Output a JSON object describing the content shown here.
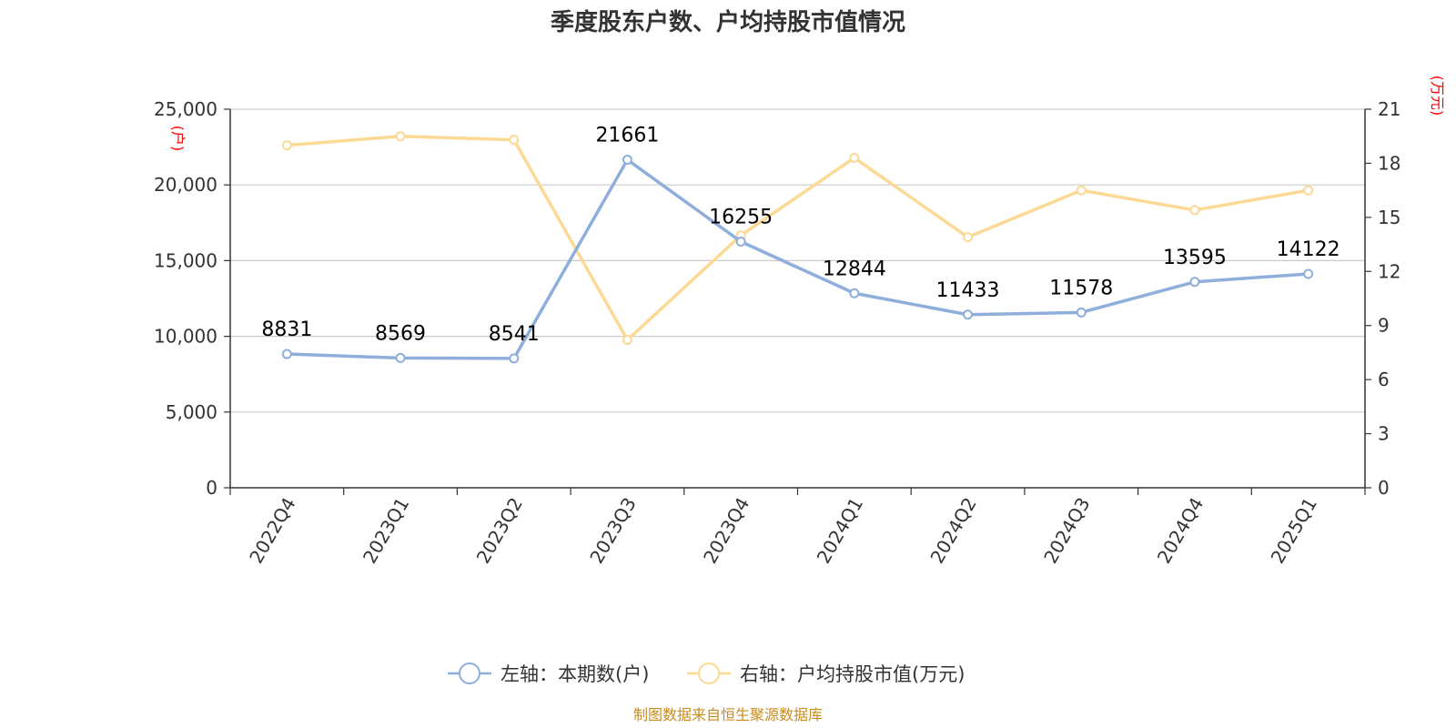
{
  "chart_data": {
    "type": "line",
    "title": "季度股东户数、户均持股市值情况",
    "categories": [
      "2022Q4",
      "2023Q1",
      "2023Q2",
      "2023Q3",
      "2023Q4",
      "2024Q1",
      "2024Q2",
      "2024Q3",
      "2024Q4",
      "2025Q1"
    ],
    "left_axis": {
      "unit": "(户)",
      "ylim": [
        0,
        25000
      ],
      "ticks": [
        "0",
        "5,000",
        "10,000",
        "15,000",
        "20,000",
        "25,000"
      ]
    },
    "right_axis": {
      "unit": "(万元)",
      "ylim": [
        0,
        21
      ],
      "ticks": [
        "0",
        "3",
        "6",
        "9",
        "12",
        "15",
        "18",
        "21"
      ]
    },
    "grid": true,
    "legend_position": "bottom",
    "series": [
      {
        "name": "左轴：本期数(户)",
        "axis": "left",
        "color": "#8eaedb",
        "values": [
          8831,
          8569,
          8541,
          21661,
          16255,
          12844,
          11433,
          11578,
          13595,
          14122
        ],
        "labels": [
          "8831",
          "8569",
          "8541",
          "21661",
          "16255",
          "12844",
          "11433",
          "11578",
          "13595",
          "14122"
        ]
      },
      {
        "name": "右轴：户均持股市值(万元)",
        "axis": "right",
        "color": "#fcd995",
        "values": [
          19.0,
          19.5,
          19.3,
          8.2,
          14.0,
          18.3,
          13.9,
          16.5,
          15.4,
          16.5
        ]
      }
    ],
    "source": "制图数据来自恒生聚源数据库"
  }
}
